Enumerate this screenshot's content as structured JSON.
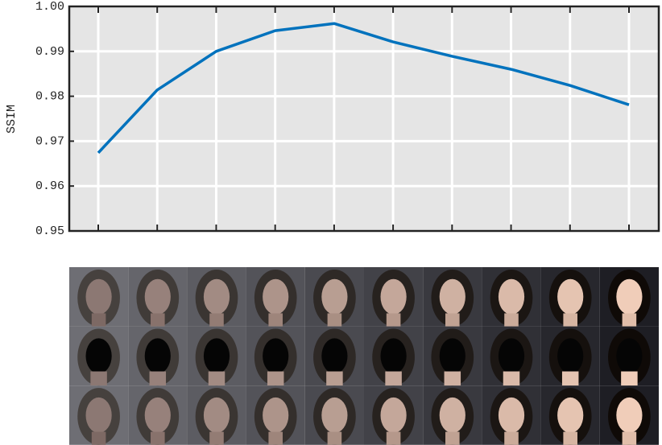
{
  "chart_data": {
    "type": "line",
    "ylabel": "SSIM",
    "categories": [
      null,
      null,
      null,
      null,
      null,
      null,
      null,
      null,
      null,
      null
    ],
    "series": [
      {
        "color": "#0072bd",
        "values": [
          0.9674,
          0.9814,
          0.99,
          0.9946,
          0.9962,
          0.9921,
          0.9889,
          0.986,
          0.9824,
          0.9781
        ]
      }
    ],
    "ylim": [
      0.95,
      1
    ],
    "yticks": [
      0.95,
      0.96,
      0.97,
      0.98,
      0.99,
      {
        "value": 1,
        "label": "1.00"
      }
    ],
    "grid": true
  }
}
